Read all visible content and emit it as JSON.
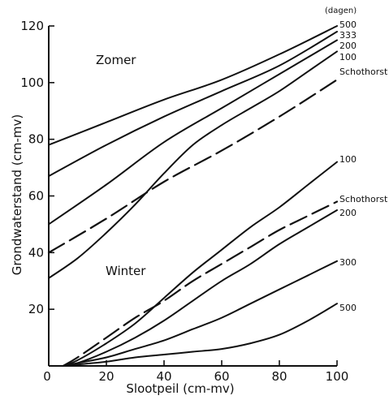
{
  "chart_data": {
    "type": "line",
    "xlabel": "Slootpeil (cm-mv)",
    "ylabel": "Grondwaterstand (cm-mv)",
    "xlim": [
      0,
      100
    ],
    "ylim": [
      0,
      120
    ],
    "xticks": [
      0,
      20,
      40,
      60,
      80,
      100
    ],
    "yticks": [
      20,
      40,
      60,
      80,
      100,
      120
    ],
    "xtick_labels": [
      "0",
      "20",
      "40",
      "60",
      "80",
      "100"
    ],
    "ytick_labels": [
      "20",
      "40",
      "60",
      "80",
      "100",
      "120"
    ],
    "grid": false,
    "unit_label": "(dagen)",
    "annotations": [
      "Zomer",
      "Winter"
    ],
    "series": [
      {
        "name": "500",
        "group": "Zomer",
        "style": "solid",
        "x": [
          0,
          20,
          40,
          60,
          80,
          100
        ],
        "y": [
          78,
          86,
          94,
          101,
          110,
          120
        ]
      },
      {
        "name": "333",
        "group": "Zomer",
        "style": "solid",
        "x": [
          0,
          20,
          40,
          60,
          80,
          100
        ],
        "y": [
          67,
          78,
          88,
          97,
          106,
          118
        ]
      },
      {
        "name": "200",
        "group": "Zomer",
        "style": "solid",
        "x": [
          0,
          20,
          40,
          60,
          80,
          100
        ],
        "y": [
          50,
          64,
          79,
          91,
          103,
          115
        ]
      },
      {
        "name": "100",
        "group": "Zomer",
        "style": "solid",
        "x": [
          0,
          10,
          20,
          30,
          40,
          50,
          60,
          70,
          80,
          90,
          100
        ],
        "y": [
          31,
          38,
          47,
          57,
          68,
          78,
          85,
          91,
          97,
          104,
          111
        ]
      },
      {
        "name": "Schothorst",
        "group": "Zomer",
        "style": "dashed",
        "x": [
          0,
          20,
          40,
          60,
          80,
          100
        ],
        "y": [
          40,
          52,
          65,
          76,
          88,
          101
        ]
      },
      {
        "name": "100",
        "group": "Winter",
        "style": "solid",
        "x": [
          5,
          10,
          20,
          30,
          40,
          50,
          60,
          70,
          80,
          90,
          100
        ],
        "y": [
          0,
          2,
          8,
          15,
          24,
          33,
          41,
          49,
          56,
          64,
          72
        ]
      },
      {
        "name": "Schothorst",
        "group": "Winter",
        "style": "dashed",
        "x": [
          5,
          10,
          20,
          30,
          40,
          50,
          60,
          70,
          80,
          90,
          100
        ],
        "y": [
          0,
          3,
          10,
          17,
          23,
          30,
          36,
          42,
          48,
          53,
          58
        ]
      },
      {
        "name": "200",
        "group": "Winter",
        "style": "solid",
        "x": [
          5,
          10,
          20,
          30,
          40,
          50,
          60,
          70,
          80,
          90,
          100
        ],
        "y": [
          0,
          1,
          5,
          10,
          16,
          23,
          30,
          36,
          43,
          49,
          55
        ]
      },
      {
        "name": "300",
        "group": "Winter",
        "style": "solid",
        "x": [
          5,
          10,
          20,
          30,
          40,
          50,
          60,
          70,
          80,
          90,
          100
        ],
        "y": [
          0,
          1,
          3,
          6,
          9,
          13,
          17,
          22,
          27,
          32,
          37
        ]
      },
      {
        "name": "500",
        "group": "Winter",
        "style": "solid",
        "x": [
          5,
          10,
          20,
          30,
          40,
          50,
          60,
          70,
          80,
          90,
          100
        ],
        "y": [
          0,
          0.5,
          1.5,
          3,
          4,
          5,
          6,
          8,
          11,
          16,
          22
        ]
      }
    ]
  }
}
